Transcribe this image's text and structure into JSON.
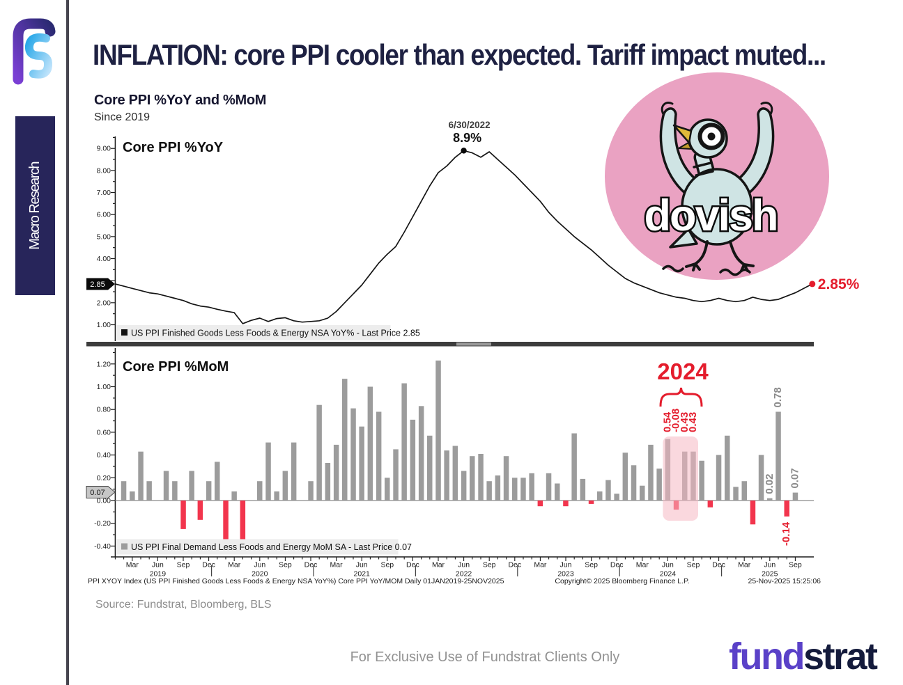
{
  "page": {
    "title": "INFLATION: core PPI cooler than expected. Tariff impact muted...",
    "sidebar_label": "Macro Research",
    "source_line": "Source: Fundstrat, Bloomberg, BLS",
    "footer_note": "For Exclusive Use of Fundstrat Clients Only",
    "brand": {
      "part1": "fund",
      "part2": "strat"
    }
  },
  "chart_header": {
    "title": "Core PPI %YoY and %MoM",
    "subtitle": "Since 2019"
  },
  "annotations": {
    "peak_date": "6/30/2022",
    "peak_value": "8.9%",
    "last_yoy_label": "2.85%",
    "dovish": "dovish",
    "highlight_year": "2024"
  },
  "footer_meta": {
    "left": "PPI XYOY Index (US PPI Finished Goods Less Foods & Energy NSA YoY%) Core PPI YoY/MOM Daily 01JAN2019-25NOV2025",
    "center": "Copyright© 2025 Bloomberg Finance L.P.",
    "right": "25-Nov-2025 15:25:06"
  },
  "colors": {
    "navy": "#1e2142",
    "brand_purple": "#5a41c8",
    "brand_dark": "#141b3c",
    "line_black": "#141414",
    "bar_gray": "#9c9c9c",
    "bar_red": "#f2354d",
    "annotation_red": "#e41c2c",
    "label_gray": "#8a8a8a",
    "pink_circle": "#eaa2c2",
    "pink_highlight": "#f6b8c2",
    "legend_bg": "#ededed",
    "separator": "#3d3d3d",
    "axis_black": "#1a1a1a"
  },
  "chart_data": [
    {
      "type": "line",
      "title": "Core PPI %YoY",
      "x_start": "Jan 2019",
      "x_end": "Nov 2025",
      "freq": "monthly",
      "ylim": [
        0.5,
        9.6
      ],
      "yticks": [
        1.0,
        2.0,
        3.0,
        4.0,
        5.0,
        6.0,
        7.0,
        8.0,
        9.0
      ],
      "axis_marker": "2.85",
      "legend": "US PPI Finished Goods Less Foods & Energy NSA YoY% - Last Price 2.85",
      "peak": {
        "date": "6/30/2022",
        "label": "8.9%",
        "value": 8.9
      },
      "end_label": "2.85%",
      "values": [
        2.85,
        2.75,
        2.65,
        2.55,
        2.45,
        2.4,
        2.3,
        2.2,
        2.1,
        1.95,
        1.85,
        1.8,
        1.7,
        1.62,
        1.55,
        1.05,
        1.2,
        1.3,
        1.15,
        1.28,
        1.32,
        1.18,
        1.12,
        1.15,
        1.18,
        1.3,
        1.6,
        2.0,
        2.4,
        2.8,
        3.3,
        3.8,
        4.2,
        4.55,
        5.2,
        5.9,
        6.6,
        7.3,
        7.9,
        8.2,
        8.6,
        8.9,
        8.8,
        8.6,
        8.85,
        8.5,
        8.15,
        7.8,
        7.4,
        7.0,
        6.6,
        6.1,
        5.7,
        5.35,
        5.0,
        4.7,
        4.4,
        4.05,
        3.7,
        3.4,
        3.1,
        2.9,
        2.75,
        2.6,
        2.45,
        2.35,
        2.25,
        2.2,
        2.1,
        2.05,
        2.1,
        2.2,
        2.1,
        2.05,
        2.1,
        2.25,
        2.15,
        2.1,
        2.15,
        2.3,
        2.45,
        2.65,
        2.85
      ]
    },
    {
      "type": "bar",
      "title": "Core PPI %MoM",
      "x_start": "Jan 2019",
      "x_end": "Sep 2025",
      "freq": "monthly",
      "ylim": [
        -0.5,
        1.3
      ],
      "yticks": [
        -0.4,
        -0.2,
        0.0,
        0.2,
        0.4,
        0.6,
        0.8,
        1.0,
        1.2
      ],
      "axis_marker": "0.07",
      "legend": "US PPI Final Demand Less Foods and Energy MoM SA - Last Price 0.07",
      "values": [
        0,
        0.17,
        0.08,
        0.43,
        0.17,
        0,
        0.26,
        0.17,
        -0.25,
        0.26,
        -0.17,
        0.17,
        0.34,
        -0.34,
        0.08,
        -0.34,
        0,
        0.17,
        0.51,
        0.08,
        0.26,
        0.51,
        0,
        0.17,
        0.84,
        0.33,
        0.49,
        1.07,
        0.81,
        0.65,
        1.0,
        0.78,
        0.2,
        0.45,
        1.03,
        0.71,
        0.83,
        0.57,
        1.23,
        0.44,
        0.48,
        0.26,
        0.39,
        0.41,
        0.17,
        0.22,
        0.39,
        0.2,
        0.2,
        0.24,
        -0.05,
        0.24,
        0.15,
        -0.05,
        0.59,
        0.19,
        -0.03,
        0.08,
        0.18,
        0.06,
        0.42,
        0.31,
        0.13,
        0.49,
        0.28,
        0.54,
        -0.08,
        0.43,
        0.43,
        0.35,
        -0.06,
        0.4,
        0.57,
        0.12,
        0.17,
        -0.21,
        0.4,
        0.02,
        0.78,
        -0.14,
        0.07
      ],
      "highlight": {
        "label": "2024",
        "months": [
          "Jun 2024",
          "Jul 2024",
          "Aug 2024",
          "Sep 2024"
        ],
        "value_labels": [
          "0.54",
          "-0.08",
          "0.43",
          "0.43"
        ],
        "start_month_index": 65
      },
      "bar_labels": [
        {
          "month_index": 77,
          "text": "0.02",
          "color": "gray"
        },
        {
          "month_index": 78,
          "text": "0.78",
          "color": "gray"
        },
        {
          "month_index": 79,
          "text": "-0.14",
          "color": "red"
        },
        {
          "month_index": 80,
          "text": "0.07",
          "color": "gray"
        }
      ],
      "x_axis": {
        "tick_months": [
          "Mar",
          "Jun",
          "Sep",
          "Dec"
        ],
        "years": [
          "2019",
          "2020",
          "2021",
          "2022",
          "2023",
          "2024",
          "2025"
        ]
      }
    }
  ]
}
